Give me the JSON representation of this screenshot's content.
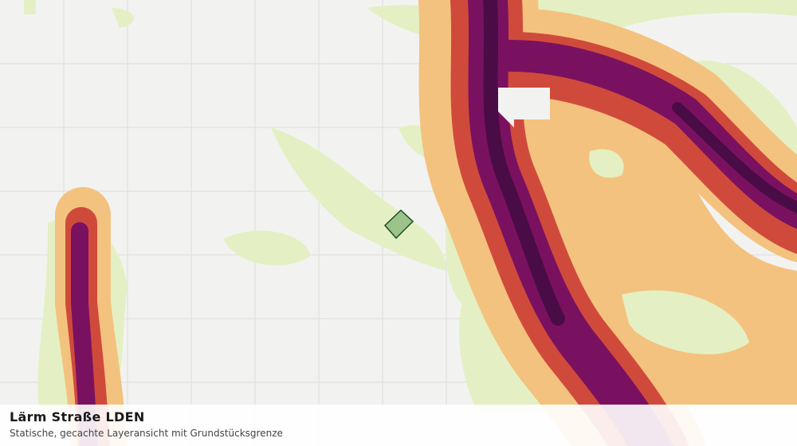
{
  "caption": {
    "title": "Lärm Straße LDEN",
    "subtitle": "Statische, gecachte Layeransicht mit Grundstücksgrenze"
  }
}
